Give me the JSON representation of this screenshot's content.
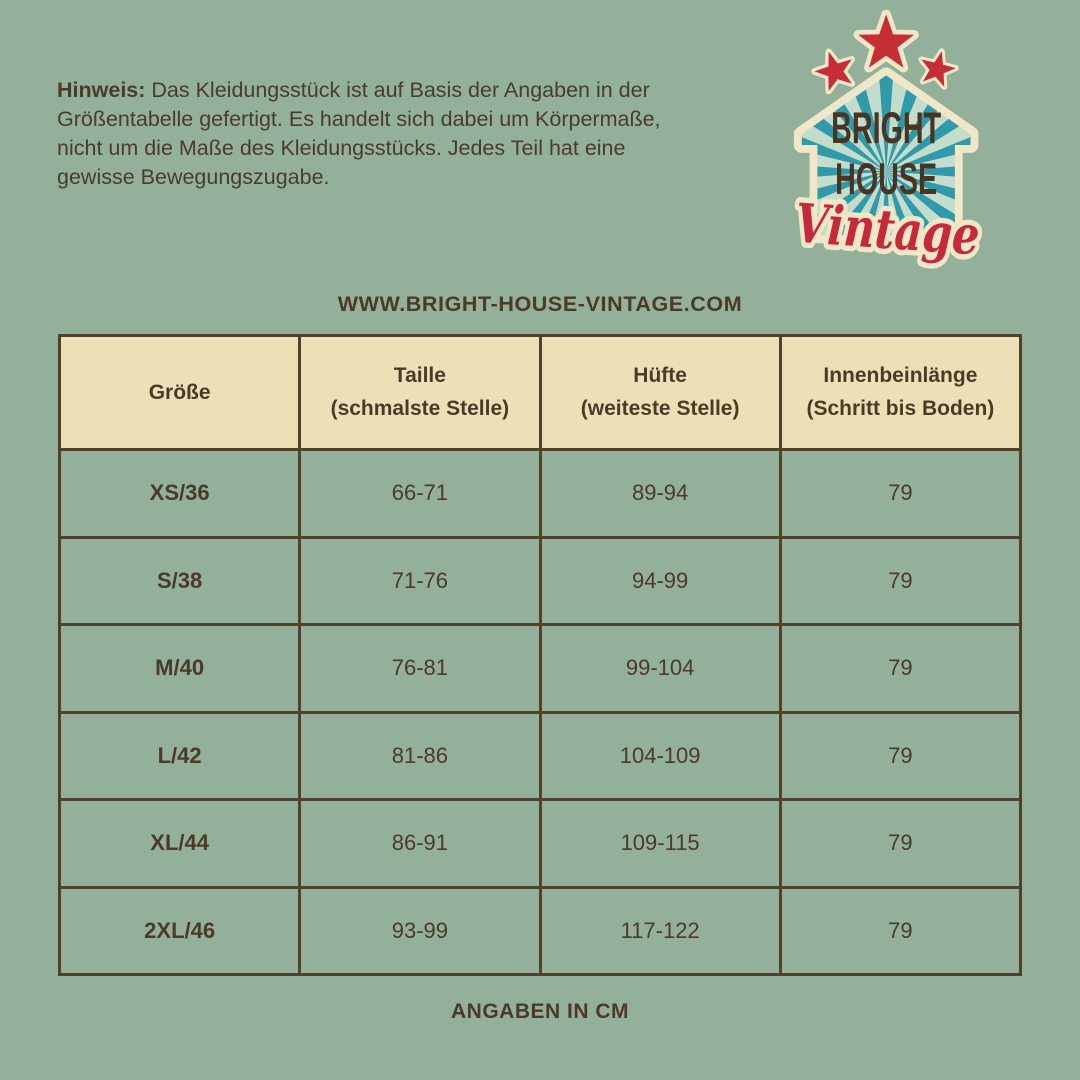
{
  "page": {
    "background_color": "#93b09a",
    "text_color": "#4c3a28",
    "accent_cream": "#eee0b6",
    "border_color": "#52402b"
  },
  "note": {
    "label": "Hinweis:",
    "line1_rest": " Das Kleidungsstück ist auf Basis der Angaben in der",
    "line2": "Größentabelle gefertigt. Es handelt sich dabei um Körpermaße,",
    "line3": "nicht um die Maße des Kleidungsstücks. Jedes Teil hat eine",
    "line4": "gewisse Bewegungszugabe."
  },
  "logo": {
    "name_line1": "BRIGHT",
    "name_line2": "HOUSE",
    "script": "Vintage",
    "colors": {
      "cream": "#f0e6c8",
      "teal": "#2f9aa9",
      "teal_gap": "#c4dccc",
      "red": "#c62d35",
      "brown": "#4a3320"
    }
  },
  "website": "WWW.BRIGHT-HOUSE-VINTAGE.COM",
  "size_table": {
    "headers": [
      {
        "line1": "Größe",
        "line2": ""
      },
      {
        "line1": "Taille",
        "line2": "(schmalste Stelle)"
      },
      {
        "line1": "Hüfte",
        "line2": "(weiteste Stelle)"
      },
      {
        "line1": "Innenbeinlänge",
        "line2": "(Schritt bis Boden)"
      }
    ],
    "rows": [
      {
        "size": "XS/36",
        "taille": "66-71",
        "huefte": "89-94",
        "innenbein": "79"
      },
      {
        "size": "S/38",
        "taille": "71-76",
        "huefte": "94-99",
        "innenbein": "79"
      },
      {
        "size": "M/40",
        "taille": "76-81",
        "huefte": "99-104",
        "innenbein": "79"
      },
      {
        "size": "L/42",
        "taille": "81-86",
        "huefte": "104-109",
        "innenbein": "79"
      },
      {
        "size": "XL/44",
        "taille": "86-91",
        "huefte": "109-115",
        "innenbein": "79"
      },
      {
        "size": "2XL/46",
        "taille": "93-99",
        "huefte": "117-122",
        "innenbein": "79"
      }
    ]
  },
  "footer": "ANGABEN IN CM"
}
